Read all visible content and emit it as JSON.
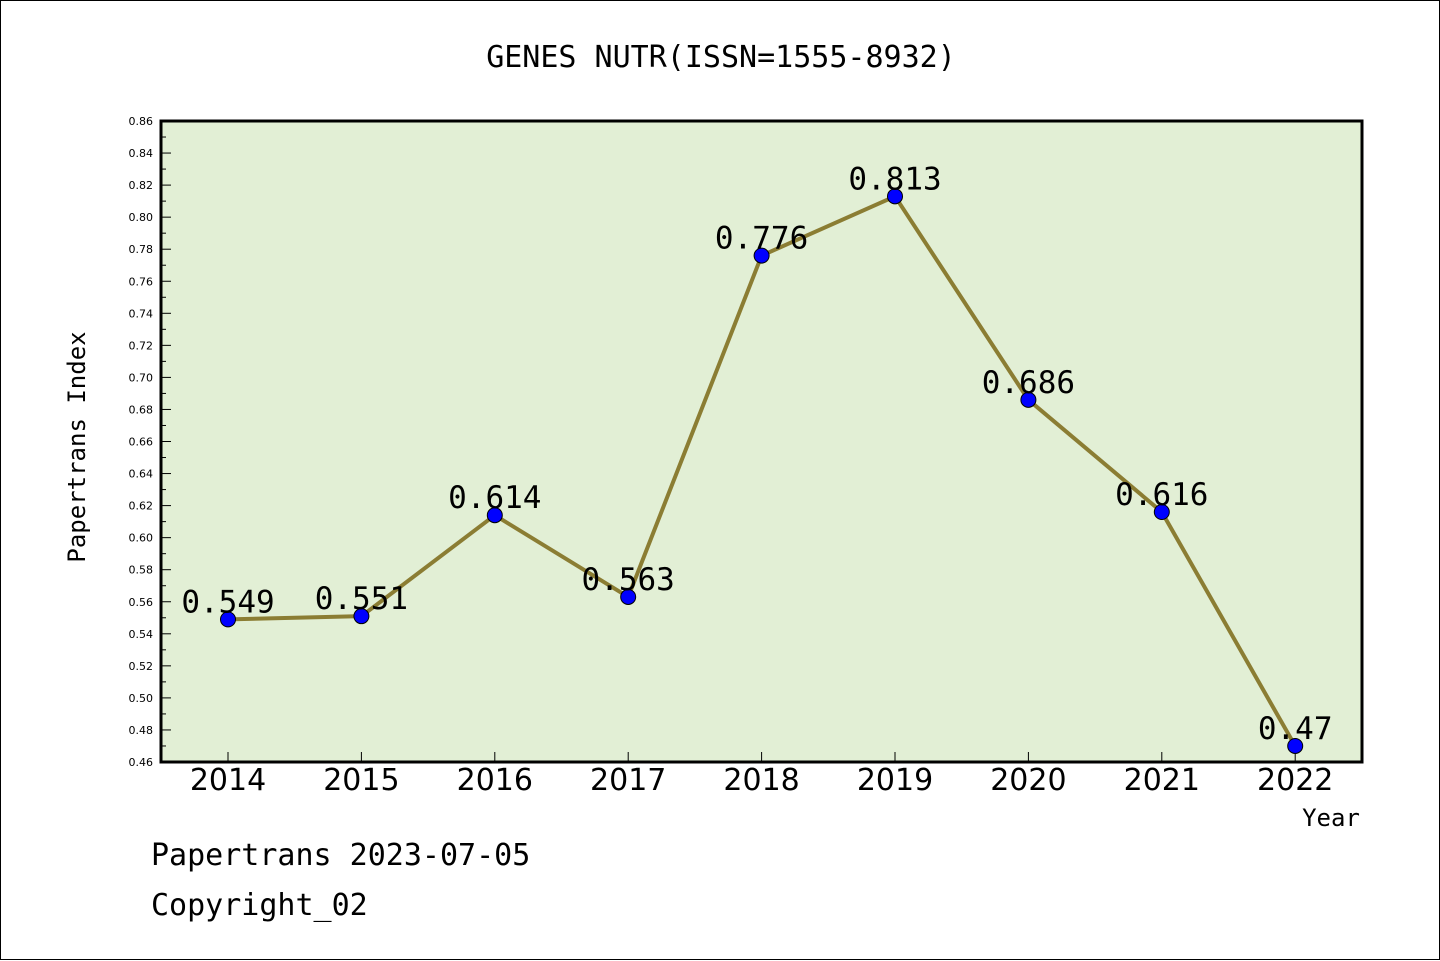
{
  "chart_data": {
    "type": "line",
    "title": "GENES NUTR(ISSN=1555-8932)",
    "xlabel": "Year",
    "ylabel": "Papertrans Index",
    "categories": [
      "2014",
      "2015",
      "2016",
      "2017",
      "2018",
      "2019",
      "2020",
      "2021",
      "2022"
    ],
    "values": [
      0.549,
      0.551,
      0.614,
      0.563,
      0.776,
      0.813,
      0.686,
      0.616,
      0.47
    ],
    "data_labels": [
      "0.549",
      "0.551",
      "0.614",
      "0.563",
      "0.776",
      "0.813",
      "0.686",
      "0.616",
      "0.47"
    ],
    "ylim": [
      0.46,
      0.86
    ],
    "yticks": [
      "0.46",
      "0.48",
      "0.50",
      "0.52",
      "0.54",
      "0.56",
      "0.58",
      "0.60",
      "0.62",
      "0.64",
      "0.66",
      "0.68",
      "0.70",
      "0.72",
      "0.74",
      "0.76",
      "0.78",
      "0.80",
      "0.82",
      "0.84",
      "0.86"
    ],
    "grid": false,
    "legend": "none",
    "colors": {
      "plot_background": "#e2efd5",
      "line": "#8b7d33",
      "marker": "#0000ff"
    }
  },
  "footer": {
    "line1": "Papertrans 2023-07-05",
    "line2": "Copyright_02"
  }
}
